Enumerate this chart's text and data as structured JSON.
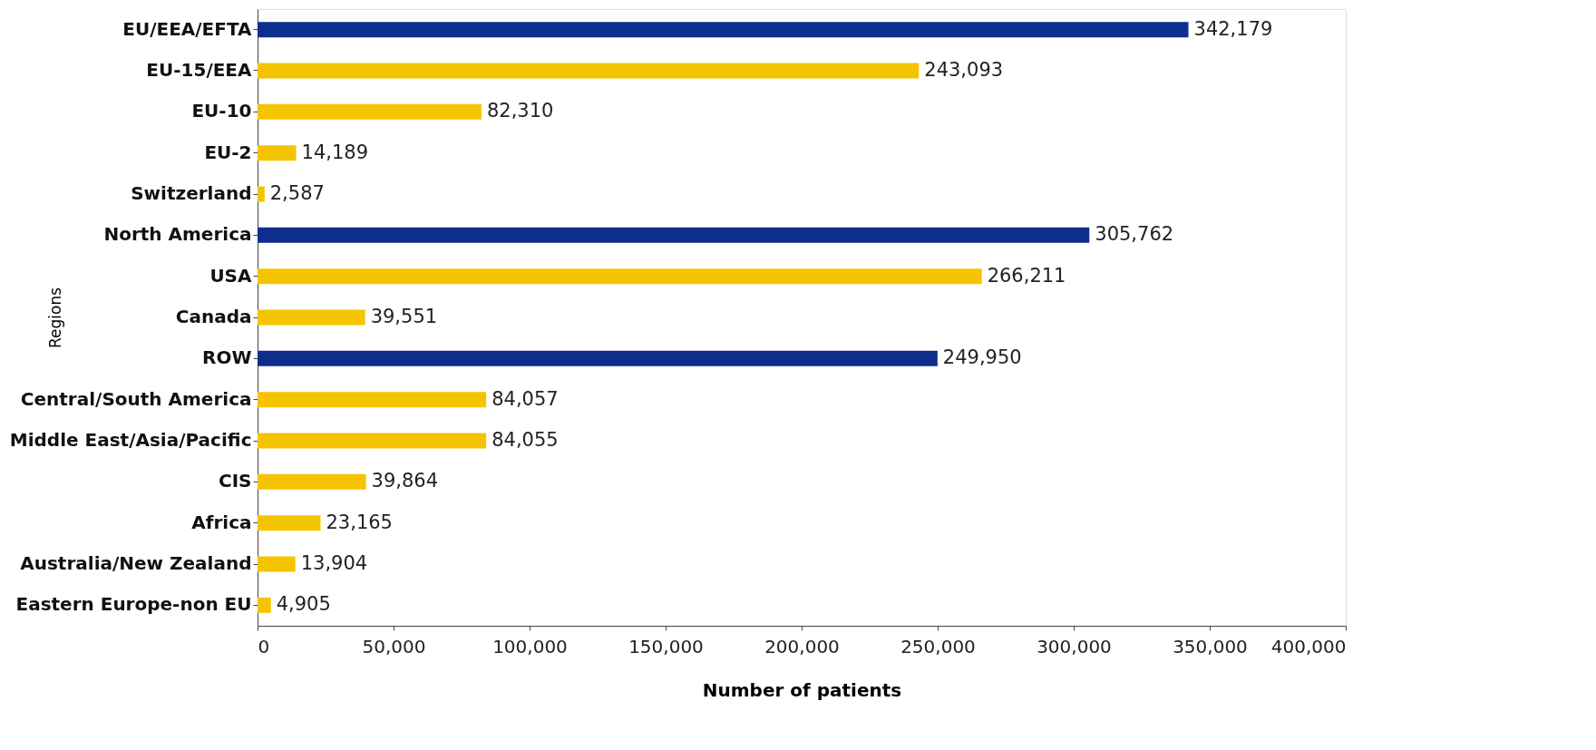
{
  "chart_data": {
    "type": "bar",
    "orientation": "horizontal",
    "xlabel": "Number of patients",
    "ylabel": "Regions",
    "categories": [
      "EU/EEA/EFTA",
      "EU-15/EEA",
      "EU-10",
      "EU-2",
      "Switzerland",
      "North America",
      "USA",
      "Canada",
      "ROW",
      "Central/South America",
      "Middle East/Asia/Pacific",
      "CIS",
      "Africa",
      "Australia/New Zealand",
      "Eastern Europe-non EU"
    ],
    "values": [
      342179,
      243093,
      82310,
      14189,
      2587,
      305762,
      266211,
      39551,
      249950,
      84057,
      84055,
      39864,
      23165,
      13904,
      4905
    ],
    "colors": [
      "#0d2e8c",
      "#f5c400",
      "#f5c400",
      "#f5c400",
      "#f5c400",
      "#0d2e8c",
      "#f5c400",
      "#f5c400",
      "#0d2e8c",
      "#f5c400",
      "#f5c400",
      "#f5c400",
      "#f5c400",
      "#f5c400",
      "#f5c400"
    ],
    "value_labels": [
      "342,179",
      "243,093",
      "82,310",
      "14,189",
      "2,587",
      "305,762",
      "266,211",
      "39,551",
      "249,950",
      "84,057",
      "84,055",
      "39,864",
      "23,165",
      "13,904",
      "4,905"
    ],
    "xlim": [
      0,
      400000
    ],
    "xticks": [
      0,
      {
        "value": 50000,
        "label": "50,000"
      },
      {
        "value": 100000,
        "label": "100,000"
      },
      {
        "value": 150000,
        "label": "150,000"
      },
      {
        "value": 200000,
        "label": "200,000"
      },
      {
        "value": 250000,
        "label": "250,000"
      },
      {
        "value": 300000,
        "label": "300,000"
      },
      {
        "value": 350000,
        "label": "350,000"
      },
      {
        "value": 400000,
        "label": "400,000"
      }
    ],
    "grid": false
  }
}
